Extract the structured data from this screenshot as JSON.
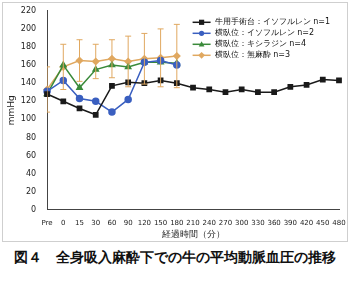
{
  "chart_data": {
    "type": "line",
    "caption": "図４　全身吸入麻酔下での牛の平均動脈血圧の推移",
    "y_label": "mmHg",
    "x_label": "経過時間（分）",
    "categories": [
      "Pre",
      "0",
      "15",
      "30",
      "60",
      "90",
      "120",
      "150",
      "180",
      "210",
      "240",
      "270",
      "300",
      "330",
      "360",
      "390",
      "420",
      "450",
      "480"
    ],
    "series": [
      {
        "name": "牛用手術台：イソフルレン n=1",
        "color": "#1a1a1a",
        "marker": "square",
        "values": [
          128,
          120,
          112,
          105,
          137,
          141,
          140,
          143,
          140,
          135,
          133,
          130,
          133,
          130,
          130,
          136,
          138,
          144,
          143
        ]
      },
      {
        "name": "横臥位：イソフルレン n=2",
        "color": "#3a5fc0",
        "marker": "circle",
        "values": [
          131,
          143,
          123,
          120,
          108,
          122,
          163,
          165,
          160,
          null,
          null,
          null,
          null,
          null,
          null,
          null,
          null,
          null,
          null
        ]
      },
      {
        "name": "横臥位：キシラジン n=4",
        "color": "#3a8a3a",
        "marker": "triangle",
        "values": [
          128,
          160,
          135,
          155,
          160,
          158,
          163,
          163,
          162,
          null,
          null,
          null,
          null,
          null,
          null,
          null,
          null,
          null,
          null
        ]
      },
      {
        "name": "横臥位：無麻酔 n=3",
        "color": "#e0a860",
        "marker": "diamond",
        "values": [
          133,
          158,
          165,
          164,
          167,
          164,
          167,
          168,
          170,
          null,
          null,
          null,
          null,
          null,
          null,
          null,
          null,
          null,
          null
        ],
        "errors": [
          25,
          25,
          23,
          19,
          21,
          28,
          28,
          32,
          35,
          null,
          null,
          null,
          null,
          null,
          null,
          null,
          null,
          null,
          null
        ]
      }
    ],
    "ylim": [
      0,
      220
    ],
    "yticks": [
      0,
      20,
      40,
      60,
      80,
      100,
      120,
      140,
      160,
      180,
      200,
      220
    ],
    "grid": false,
    "legend": "upper right"
  }
}
